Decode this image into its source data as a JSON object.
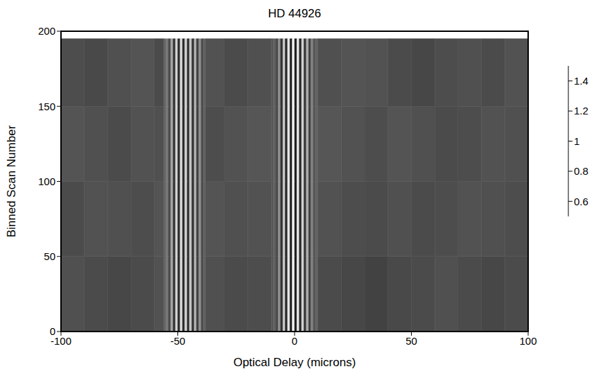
{
  "chart_data": {
    "type": "heatmap",
    "title": "HD 44926",
    "x_label": "Optical Delay (microns)",
    "y_label": "Binned Scan Number",
    "color": "gray",
    "xlim": [
      -100,
      100
    ],
    "xticks": [
      -100,
      -50,
      0,
      50,
      100
    ],
    "ylim": [
      0,
      200
    ],
    "yticks": [
      0,
      50,
      100,
      150,
      200
    ],
    "x_edges": [
      -100,
      -90,
      -80,
      -70,
      -60,
      -56,
      -55,
      -54,
      -53,
      -52,
      -51,
      -50,
      -49,
      -48,
      -47,
      -46,
      -45,
      -44,
      -43,
      -42,
      -41,
      -40,
      -39,
      -38,
      -30,
      -20,
      -10,
      -9,
      -8,
      -7,
      -6,
      -5,
      -4,
      -3,
      -2,
      -1,
      0,
      1,
      2,
      3,
      4,
      5,
      6,
      7,
      8,
      9,
      10,
      20,
      30,
      40,
      50,
      60,
      70,
      80,
      90,
      100
    ],
    "y_edges": [
      0,
      50,
      100,
      150,
      195
    ],
    "cells": [
      [
        0.72,
        0.7,
        0.68,
        0.7,
        0.73,
        0.8,
        0.9,
        0.7,
        1.1,
        0.6,
        1.3,
        0.55,
        1.35,
        0.55,
        1.3,
        0.6,
        1.25,
        0.6,
        1.15,
        0.65,
        1.0,
        0.7,
        0.8,
        0.72,
        0.7,
        0.71,
        0.75,
        0.8,
        0.7,
        1.0,
        0.6,
        1.25,
        0.55,
        1.4,
        0.5,
        1.45,
        0.5,
        1.4,
        0.55,
        1.3,
        0.6,
        1.15,
        0.65,
        0.95,
        0.75,
        0.8,
        0.7,
        0.68,
        0.66,
        0.69,
        0.7,
        0.72,
        0.7,
        0.68,
        0.7
      ],
      [
        0.7,
        0.73,
        0.72,
        0.71,
        0.74,
        0.8,
        0.9,
        0.7,
        1.1,
        0.6,
        1.3,
        0.55,
        1.35,
        0.55,
        1.3,
        0.6,
        1.25,
        0.6,
        1.15,
        0.65,
        1.0,
        0.7,
        0.8,
        0.74,
        0.72,
        0.73,
        0.75,
        0.8,
        0.7,
        1.0,
        0.6,
        1.25,
        0.55,
        1.4,
        0.5,
        1.45,
        0.5,
        1.4,
        0.55,
        1.3,
        0.6,
        1.15,
        0.65,
        0.95,
        0.75,
        0.8,
        0.73,
        0.71,
        0.7,
        0.72,
        0.7,
        0.71,
        0.73,
        0.72,
        0.71
      ],
      [
        0.74,
        0.72,
        0.7,
        0.73,
        0.72,
        0.8,
        0.9,
        0.7,
        1.1,
        0.6,
        1.3,
        0.55,
        1.35,
        0.55,
        1.3,
        0.6,
        1.25,
        0.6,
        1.15,
        0.65,
        1.0,
        0.7,
        0.8,
        0.71,
        0.73,
        0.75,
        0.75,
        0.8,
        0.7,
        1.0,
        0.6,
        1.25,
        0.55,
        1.4,
        0.5,
        1.45,
        0.5,
        1.4,
        0.55,
        1.3,
        0.6,
        1.15,
        0.65,
        0.95,
        0.75,
        0.8,
        0.75,
        0.73,
        0.71,
        0.74,
        0.72,
        0.7,
        0.71,
        0.73,
        0.72
      ],
      [
        0.71,
        0.69,
        0.72,
        0.74,
        0.7,
        0.8,
        0.9,
        0.7,
        1.1,
        0.6,
        1.3,
        0.55,
        1.35,
        0.55,
        1.3,
        0.6,
        1.25,
        0.6,
        1.15,
        0.65,
        1.0,
        0.7,
        0.8,
        0.73,
        0.7,
        0.72,
        0.75,
        0.8,
        0.7,
        1.0,
        0.6,
        1.25,
        0.55,
        1.4,
        0.5,
        1.45,
        0.5,
        1.4,
        0.55,
        1.3,
        0.6,
        1.15,
        0.65,
        0.95,
        0.75,
        0.8,
        0.72,
        0.74,
        0.73,
        0.7,
        0.68,
        0.71,
        0.72,
        0.7,
        0.73
      ]
    ],
    "colorbar": {
      "range": [
        0.5,
        1.5
      ],
      "ticks": [
        0.6,
        0.8,
        1,
        1.2,
        1.4
      ]
    }
  }
}
